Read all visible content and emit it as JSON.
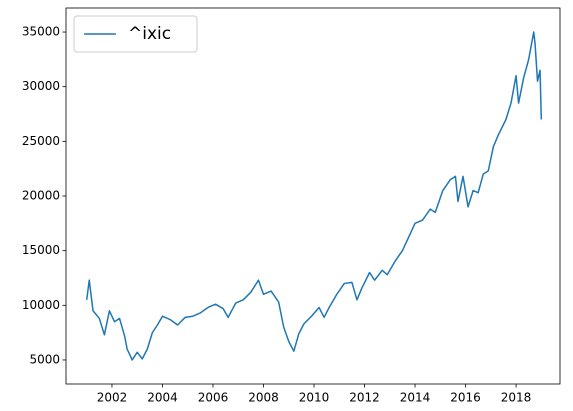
{
  "chart_data": {
    "type": "line",
    "x": [
      2001.0,
      2001.1,
      2001.25,
      2001.5,
      2001.7,
      2001.9,
      2002.1,
      2002.3,
      2002.5,
      2002.6,
      2002.8,
      2003.0,
      2003.2,
      2003.4,
      2003.6,
      2003.8,
      2004.0,
      2004.3,
      2004.6,
      2004.9,
      2005.2,
      2005.5,
      2005.8,
      2006.1,
      2006.4,
      2006.6,
      2006.9,
      2007.2,
      2007.5,
      2007.8,
      2008.0,
      2008.3,
      2008.6,
      2008.8,
      2009.0,
      2009.2,
      2009.4,
      2009.6,
      2009.9,
      2010.2,
      2010.4,
      2010.6,
      2010.9,
      2011.2,
      2011.5,
      2011.7,
      2011.9,
      2012.2,
      2012.4,
      2012.7,
      2012.9,
      2013.2,
      2013.5,
      2013.8,
      2014.0,
      2014.3,
      2014.6,
      2014.8,
      2015.1,
      2015.4,
      2015.6,
      2015.7,
      2015.9,
      2016.1,
      2016.3,
      2016.5,
      2016.7,
      2016.9,
      2017.1,
      2017.3,
      2017.6,
      2017.8,
      2018.0,
      2018.1,
      2018.3,
      2018.5,
      2018.7,
      2018.75,
      2018.85,
      2018.95,
      2019.0
    ],
    "series": [
      {
        "name": "^ixic",
        "color": "#1f77b4",
        "values": [
          10500,
          12300,
          9500,
          8800,
          7300,
          9500,
          8500,
          8800,
          7200,
          6000,
          5000,
          5700,
          5100,
          6000,
          7500,
          8200,
          9000,
          8700,
          8200,
          8900,
          9000,
          9300,
          9800,
          10100,
          9700,
          8900,
          10200,
          10500,
          11200,
          12300,
          11000,
          11300,
          10300,
          8000,
          6700,
          5800,
          7400,
          8300,
          9000,
          9800,
          8900,
          9800,
          11000,
          12000,
          12100,
          10500,
          11600,
          13000,
          12300,
          13200,
          12800,
          14000,
          15000,
          16500,
          17500,
          17800,
          18800,
          18500,
          20500,
          21500,
          21800,
          19500,
          21800,
          19000,
          20500,
          20300,
          22000,
          22300,
          24500,
          25600,
          27000,
          28500,
          31000,
          28500,
          30800,
          32500,
          35000,
          34000,
          30500,
          31500,
          27000
        ]
      }
    ],
    "xlim": [
      2000.18,
      2019.74
    ],
    "xticks": [
      2002,
      2004,
      2006,
      2008,
      2010,
      2012,
      2014,
      2016,
      2018
    ],
    "ylim": [
      2800,
      37200
    ],
    "yticks": [
      5000,
      10000,
      15000,
      20000,
      25000,
      30000,
      35000
    ],
    "grid": false,
    "legend": "upper left"
  }
}
